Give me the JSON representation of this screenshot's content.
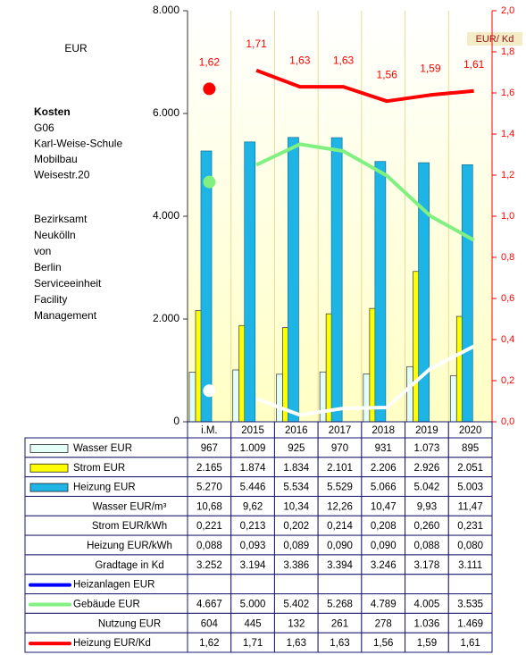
{
  "chart_data": {
    "type": "bar",
    "unit_label": "EUR",
    "title": "Kosten",
    "subtitle_lines": [
      "G06",
      "Karl-Weise-Schule",
      "Mobilbau",
      "Weisestr.20"
    ],
    "owner_lines": [
      "Bezirksamt",
      "Neukölln",
      "von",
      "Berlin",
      "Serviceeinheit",
      "Facility",
      "Management"
    ],
    "y2_label": "EUR/ Kd",
    "categories": [
      "i.M.",
      "2015",
      "2016",
      "2017",
      "2018",
      "2019",
      "2020"
    ],
    "ylim": [
      0,
      8000
    ],
    "yticks": [
      0,
      {
        "value": 2000,
        "label": "2.000"
      },
      {
        "value": 4000,
        "label": "4.000"
      },
      {
        "value": 6000,
        "label": "6.000"
      },
      {
        "value": 8000,
        "label": "8.000"
      }
    ],
    "y2lim": [
      0,
      2
    ],
    "y2ticks": [
      {
        "value": 0,
        "label": "0,0"
      },
      {
        "value": 0.2,
        "label": "0,2"
      },
      {
        "value": 0.4,
        "label": "0,4"
      },
      {
        "value": 0.6,
        "label": "0,6"
      },
      {
        "value": 0.8,
        "label": "0,8"
      },
      {
        "value": 1.0,
        "label": "1,0"
      },
      {
        "value": 1.2,
        "label": "1,2"
      },
      {
        "value": 1.4,
        "label": "1,4"
      },
      {
        "value": 1.6,
        "label": "1,6"
      },
      {
        "value": 1.8,
        "label": "1,8"
      },
      {
        "value": 2.0,
        "label": "2,0"
      }
    ],
    "series": [
      {
        "name": "Wasser EUR",
        "type": "bar",
        "color": "#e4fff8",
        "values": [
          967,
          1009,
          925,
          970,
          931,
          1073,
          895
        ],
        "value_labels": [
          "967",
          "1.009",
          "925",
          "970",
          "931",
          "1.073",
          "895"
        ]
      },
      {
        "name": "Strom EUR",
        "type": "bar",
        "color": "#ffff00",
        "values": [
          2165,
          1874,
          1834,
          2101,
          2206,
          2926,
          2051
        ],
        "value_labels": [
          "2.165",
          "1.874",
          "1.834",
          "2.101",
          "2.206",
          "2.926",
          "2.051"
        ]
      },
      {
        "name": "Heizung EUR",
        "type": "bar",
        "color": "#1fb4e6",
        "values": [
          5270,
          5446,
          5534,
          5529,
          5066,
          5042,
          5003
        ],
        "value_labels": [
          "5.270",
          "5.446",
          "5.534",
          "5.529",
          "5.066",
          "5.042",
          "5.003"
        ]
      },
      {
        "name": "Wasser EUR/m³",
        "values": [
          10.68,
          9.62,
          10.34,
          12.26,
          10.47,
          9.93,
          11.47
        ],
        "value_labels": [
          "10,68",
          "9,62",
          "10,34",
          "12,26",
          "10,47",
          "9,93",
          "11,47"
        ]
      },
      {
        "name": "Strom EUR/kWh",
        "values": [
          0.221,
          0.213,
          0.202,
          0.214,
          0.208,
          0.26,
          0.231
        ],
        "value_labels": [
          "0,221",
          "0,213",
          "0,202",
          "0,214",
          "0,208",
          "0,260",
          "0,231"
        ]
      },
      {
        "name": "Heizung EUR/kWh",
        "values": [
          0.088,
          0.093,
          0.089,
          0.09,
          0.09,
          0.088,
          0.08
        ],
        "value_labels": [
          "0,088",
          "0,093",
          "0,089",
          "0,090",
          "0,090",
          "0,088",
          "0,080"
        ]
      },
      {
        "name": "Gradtage in Kd",
        "values": [
          3252,
          3194,
          3386,
          3394,
          3246,
          3178,
          3111
        ],
        "value_labels": [
          "3.252",
          "3.194",
          "3.386",
          "3.394",
          "3.246",
          "3.178",
          "3.111"
        ]
      },
      {
        "name": "Heizanlagen EUR",
        "type": "line",
        "color": "#0000ff",
        "values": [
          null,
          null,
          null,
          null,
          null,
          null,
          null
        ]
      },
      {
        "name": "Gebäude EUR",
        "type": "line",
        "color": "#80f080",
        "values": [
          4667,
          5000,
          5402,
          5268,
          4789,
          4005,
          3535
        ],
        "value_labels": [
          "4.667",
          "5.000",
          "5.402",
          "5.268",
          "4.789",
          "4.005",
          "3.535"
        ]
      },
      {
        "name": "Nutzung EUR",
        "type": "line",
        "color": "#ffffff",
        "values": [
          604,
          445,
          132,
          261,
          278,
          1036,
          1469
        ],
        "value_labels": [
          "604",
          "445",
          "132",
          "261",
          "278",
          "1.036",
          "1.469"
        ]
      },
      {
        "name": "Heizung EUR/Kd",
        "type": "line",
        "axis": "y2",
        "data_labels": true,
        "color": "#ff0000",
        "values": [
          1.62,
          1.71,
          1.63,
          1.63,
          1.56,
          1.59,
          1.61
        ],
        "value_labels": [
          "1,62",
          "1,71",
          "1,63",
          "1,63",
          "1,56",
          "1,59",
          "1,61"
        ]
      }
    ]
  }
}
